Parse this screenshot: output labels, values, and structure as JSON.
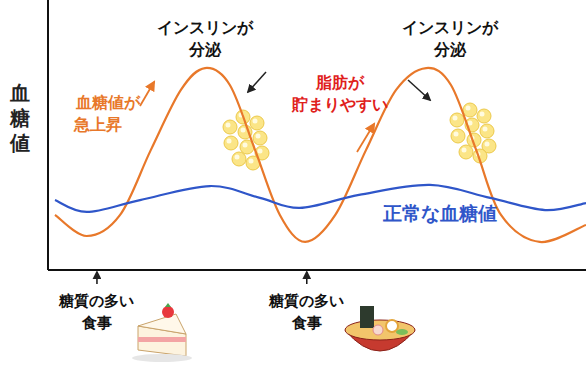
{
  "chart_data": {
    "type": "line",
    "y_label": "血糖値",
    "xlim": [
      0,
      100
    ],
    "ylim": [
      0,
      100
    ],
    "tick_labels": false,
    "grid": false,
    "series": [
      {
        "color": "#e8782a",
        "x": [
          1.3,
          7.2,
          13.4,
          19.1,
          24.7,
          29.2,
          33.8,
          38.5,
          43.1,
          47.8,
          53.4,
          59.1,
          64.7,
          70.3,
          74.9,
          79.6,
          84.2,
          91.4,
          100
        ],
        "values": [
          20.4,
          12.6,
          20.4,
          44.4,
          66.7,
          74.8,
          68.5,
          44.4,
          20.4,
          10.4,
          20.4,
          44.4,
          66.7,
          74.8,
          68.5,
          44.4,
          20.4,
          10.4,
          16.7
        ]
      },
      {
        "name": "正常な血糖値",
        "color": "#2f56c9",
        "x": [
          1.3,
          7.2,
          17.1,
          30.1,
          39.4,
          46.8,
          57.8,
          71.0,
          82.2,
          92.4,
          100
        ],
        "values": [
          25.9,
          21.5,
          25.9,
          31.1,
          26.7,
          23.0,
          27.8,
          31.5,
          26.7,
          22.2,
          24.8
        ]
      }
    ],
    "annotations": [
      {
        "text": [
          "インスリンが",
          "分泌"
        ]
      },
      {
        "text": [
          "インスリンが",
          "分泌"
        ]
      },
      {
        "text": [
          "脂肪が",
          "貯まりやすい"
        ]
      },
      {
        "text": [
          "血糖値が",
          "急上昇"
        ]
      }
    ],
    "events": [
      {
        "x": 9.1,
        "label": [
          "糖質の多い",
          "食事"
        ]
      },
      {
        "x": 48.1,
        "label": [
          "糖質の多い",
          "食事"
        ]
      }
    ]
  }
}
